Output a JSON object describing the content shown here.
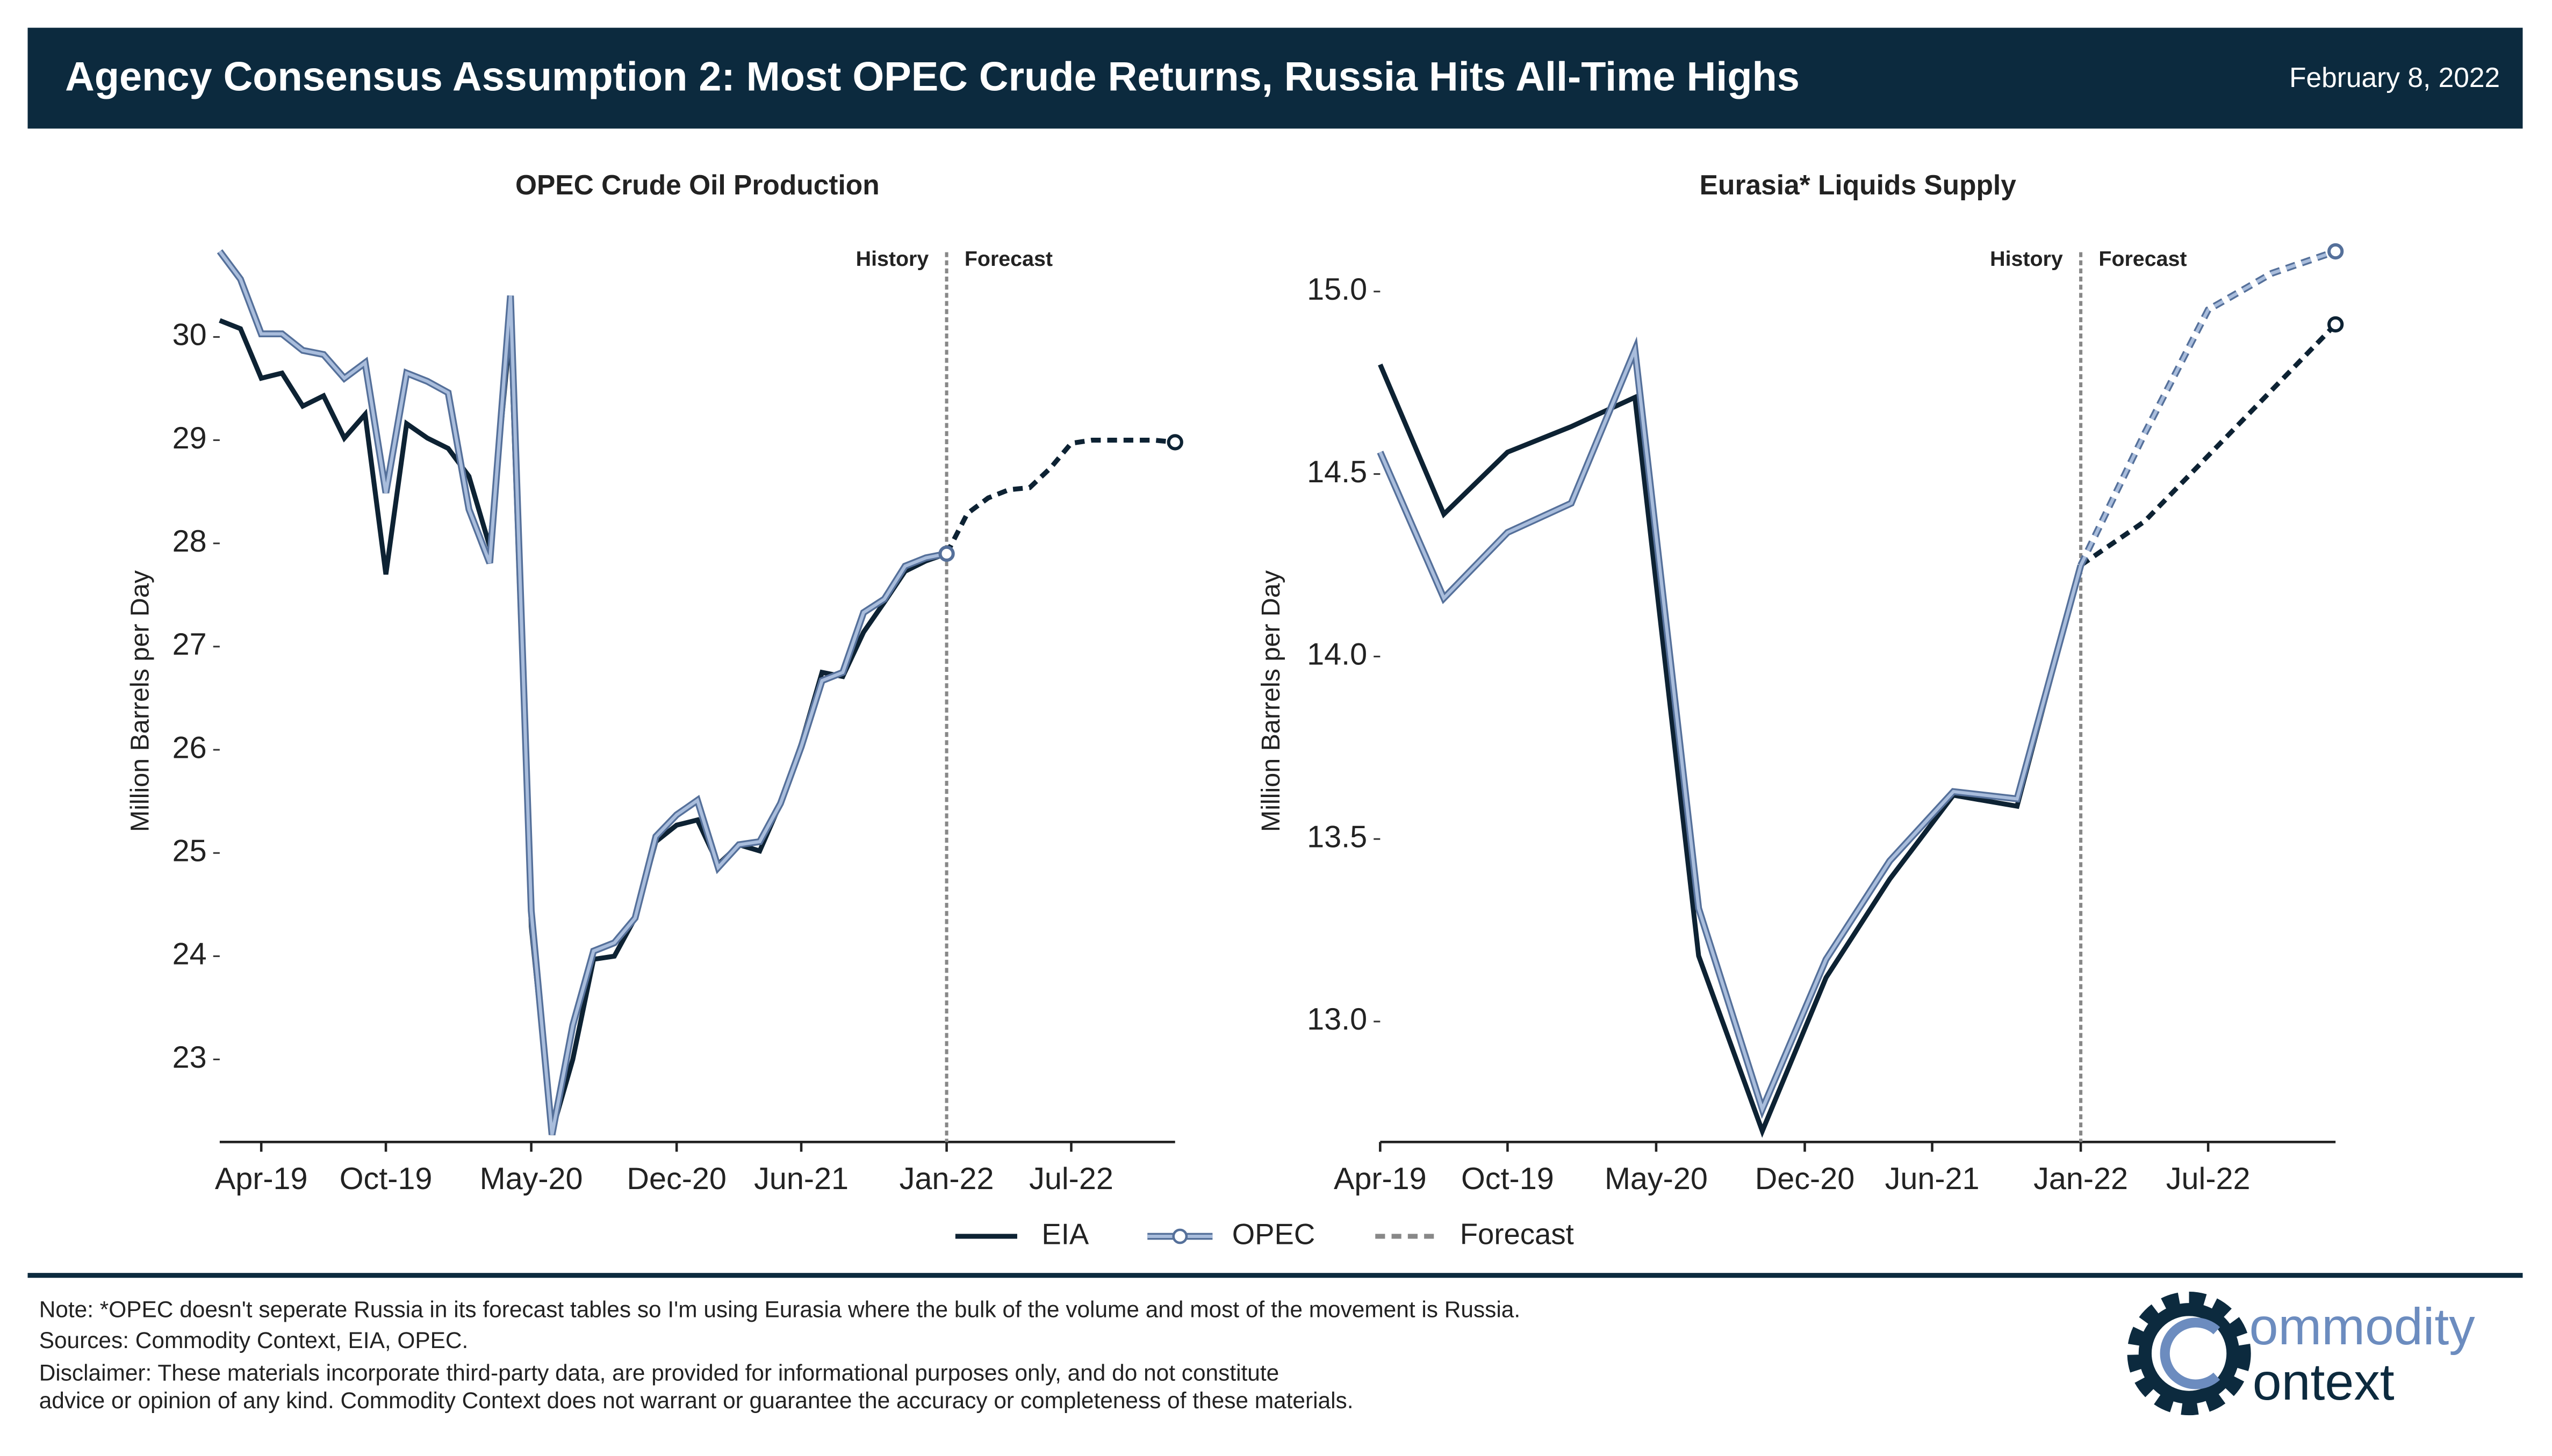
{
  "header": {
    "title": "Agency Consensus Assumption 2: Most OPEC Crude Returns, Russia Hits All-Time Highs",
    "date": "February 8, 2022"
  },
  "legend_forecast": "Forecast",
  "chart_data": [
    {
      "type": "line",
      "title": "OPEC Crude Oil Production",
      "ylabel": "Million Barrels per Day",
      "divider": {
        "x": "2022-01",
        "left": "History",
        "right": "Forecast"
      },
      "forecast_from": "2022-01",
      "x": [
        "2019-02",
        "2019-03",
        "2019-04",
        "2019-05",
        "2019-06",
        "2019-07",
        "2019-08",
        "2019-09",
        "2019-10",
        "2019-11",
        "2019-12",
        "2020-01",
        "2020-02",
        "2020-03",
        "2020-04",
        "2020-05",
        "2020-06",
        "2020-07",
        "2020-08",
        "2020-09",
        "2020-10",
        "2020-11",
        "2020-12",
        "2021-01",
        "2021-02",
        "2021-03",
        "2021-04",
        "2021-05",
        "2021-06",
        "2021-07",
        "2021-08",
        "2021-09",
        "2021-10",
        "2021-11",
        "2021-12",
        "2022-01",
        "2022-02",
        "2022-03",
        "2022-04",
        "2022-05",
        "2022-06",
        "2022-07",
        "2022-08",
        "2022-09",
        "2022-10",
        "2022-11",
        "2022-12"
      ],
      "series": [
        {
          "name": "EIA",
          "color": "#0d2233",
          "values": [
            30.16,
            30.08,
            29.6,
            29.65,
            29.33,
            29.43,
            29.02,
            29.25,
            27.7,
            29.16,
            29.02,
            28.92,
            28.65,
            27.97,
            30.1,
            24.29,
            22.3,
            23.0,
            23.97,
            24.0,
            24.37,
            25.11,
            25.27,
            25.32,
            24.89,
            25.08,
            25.02,
            25.48,
            26.06,
            26.75,
            26.71,
            27.14,
            27.43,
            27.73,
            27.83,
            27.9,
            28.29,
            28.44,
            28.52,
            28.54,
            28.73,
            28.97,
            29.0,
            29.0,
            29.0,
            29.0,
            28.98
          ]
        },
        {
          "name": "OPEC",
          "color": "#a9bddc",
          "edge_color": "#55709a",
          "values": [
            30.83,
            30.56,
            30.03,
            30.03,
            29.87,
            29.83,
            29.6,
            29.75,
            28.49,
            29.65,
            29.57,
            29.46,
            28.33,
            27.81,
            30.4,
            24.44,
            22.27,
            23.33,
            24.05,
            24.13,
            24.37,
            25.16,
            25.37,
            25.51,
            24.86,
            25.08,
            25.11,
            25.48,
            26.03,
            26.67,
            26.75,
            27.33,
            27.46,
            27.78,
            27.86,
            27.9,
            null,
            null,
            null,
            null,
            null,
            null,
            null,
            null,
            null,
            null,
            null
          ]
        }
      ],
      "xlim": [
        "2019-02",
        "2022-12"
      ],
      "xticks": [
        {
          "value": "2019-04",
          "label": "Apr-19"
        },
        {
          "value": "2019-10",
          "label": "Oct-19"
        },
        {
          "value": "2020-05",
          "label": "May-20"
        },
        {
          "value": "2020-12",
          "label": "Dec-20"
        },
        {
          "value": "2021-06",
          "label": "Jun-21"
        },
        {
          "value": "2022-01",
          "label": "Jan-22"
        },
        {
          "value": "2022-07",
          "label": "Jul-22"
        }
      ],
      "ylim": [
        22.2,
        30.9
      ],
      "yticks": [
        23,
        24,
        25,
        26,
        27,
        28,
        29,
        30
      ]
    },
    {
      "type": "line",
      "title": "Eurasia* Liquids Supply",
      "ylabel": "Million Barrels per Day",
      "divider": {
        "x": "2022-01",
        "left": "History",
        "right": "Forecast"
      },
      "forecast_from": "2022-01",
      "x": [
        "2019-04",
        "2019-07",
        "2019-10",
        "2020-01",
        "2020-04",
        "2020-07",
        "2020-10",
        "2021-01",
        "2021-04",
        "2021-07",
        "2021-10",
        "2022-01",
        "2022-04",
        "2022-07",
        "2022-10",
        "2023-01"
      ],
      "series": [
        {
          "name": "EIA",
          "color": "#0d2233",
          "values": [
            14.8,
            14.39,
            14.56,
            14.63,
            14.71,
            13.18,
            12.7,
            13.12,
            13.39,
            13.62,
            13.59,
            14.25,
            14.37,
            14.55,
            14.73,
            14.91
          ]
        },
        {
          "name": "OPEC",
          "color": "#a9bddc",
          "edge_color": "#55709a",
          "values": [
            14.56,
            14.16,
            14.34,
            14.42,
            14.84,
            13.31,
            12.76,
            13.17,
            13.44,
            13.63,
            13.61,
            14.25,
            14.61,
            14.95,
            15.05,
            15.11
          ]
        }
      ],
      "xlim": [
        "2019-04",
        "2023-01"
      ],
      "xticks": [
        {
          "value": "2019-04",
          "label": "Apr-19"
        },
        {
          "value": "2019-10",
          "label": "Oct-19"
        },
        {
          "value": "2020-05",
          "label": "May-20"
        },
        {
          "value": "2020-12",
          "label": "Dec-20"
        },
        {
          "value": "2021-06",
          "label": "Jun-21"
        },
        {
          "value": "2022-01",
          "label": "Jan-22"
        },
        {
          "value": "2022-07",
          "label": "Jul-22"
        }
      ],
      "ylim": [
        12.67,
        15.13
      ],
      "yticks": [
        {
          "value": 13,
          "label": "13.0"
        },
        13.5,
        {
          "value": 14,
          "label": "14.0"
        },
        14.5,
        {
          "value": 15,
          "label": "15.0"
        }
      ]
    }
  ],
  "notes": [
    "Note: *OPEC doesn't seperate Russia in its forecast tables so I'm using Eurasia where the bulk of the volume and most of the movement is Russia.",
    "Sources: Commodity Context, EIA, OPEC.",
    "Disclaimer: These materials incorporate third-party data, are provided for informational purposes only, and do not constitute",
    "advice or opinion of any kind. Commodity Context does not warrant or guarantee the accuracy or completeness of these materials."
  ],
  "logo": {
    "top": "ommodity",
    "bottom": "ontext"
  }
}
